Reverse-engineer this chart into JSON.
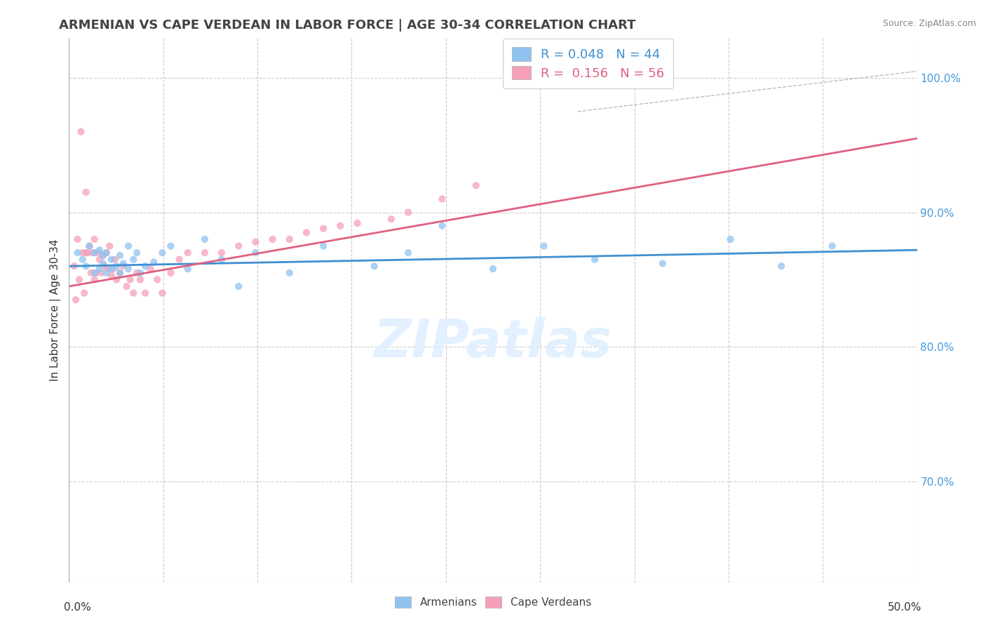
{
  "title": "ARMENIAN VS CAPE VERDEAN IN LABOR FORCE | AGE 30-34 CORRELATION CHART",
  "source": "Source: ZipAtlas.com",
  "ylabel": "In Labor Force | Age 30-34",
  "xmin": 0.0,
  "xmax": 0.5,
  "ymin": 0.625,
  "ymax": 1.03,
  "legend_blue": "R = 0.048   N = 44",
  "legend_pink": "R =  0.156   N = 56",
  "color_blue_fill": "#90C4F0",
  "color_pink_fill": "#F5A0B8",
  "color_blue_line": "#4090D0",
  "color_pink_line": "#E06080",
  "color_dashed": "#CCCCCC",
  "watermark": "ZIPatlas",
  "blue_r": 0.048,
  "pink_r": 0.156,
  "blue_scatter_x": [
    0.005,
    0.008,
    0.01,
    0.012,
    0.015,
    0.015,
    0.018,
    0.018,
    0.02,
    0.02,
    0.022,
    0.022,
    0.025,
    0.025,
    0.028,
    0.03,
    0.03,
    0.032,
    0.035,
    0.035,
    0.038,
    0.04,
    0.042,
    0.045,
    0.05,
    0.055,
    0.06,
    0.07,
    0.08,
    0.09,
    0.1,
    0.11,
    0.13,
    0.15,
    0.18,
    0.2,
    0.22,
    0.25,
    0.28,
    0.31,
    0.35,
    0.39,
    0.42,
    0.45
  ],
  "blue_scatter_y": [
    0.87,
    0.865,
    0.86,
    0.875,
    0.855,
    0.87,
    0.858,
    0.872,
    0.862,
    0.868,
    0.855,
    0.87,
    0.858,
    0.865,
    0.86,
    0.855,
    0.868,
    0.862,
    0.875,
    0.858,
    0.865,
    0.87,
    0.855,
    0.86,
    0.863,
    0.87,
    0.875,
    0.858,
    0.88,
    0.865,
    0.845,
    0.87,
    0.855,
    0.875,
    0.86,
    0.87,
    0.89,
    0.858,
    0.875,
    0.865,
    0.862,
    0.88,
    0.86,
    0.875
  ],
  "pink_scatter_x": [
    0.003,
    0.004,
    0.005,
    0.006,
    0.007,
    0.008,
    0.009,
    0.01,
    0.01,
    0.011,
    0.012,
    0.013,
    0.014,
    0.015,
    0.015,
    0.016,
    0.017,
    0.018,
    0.019,
    0.02,
    0.021,
    0.022,
    0.023,
    0.024,
    0.025,
    0.026,
    0.027,
    0.028,
    0.03,
    0.032,
    0.034,
    0.036,
    0.038,
    0.04,
    0.042,
    0.045,
    0.048,
    0.052,
    0.055,
    0.06,
    0.065,
    0.07,
    0.08,
    0.09,
    0.1,
    0.11,
    0.12,
    0.13,
    0.14,
    0.15,
    0.16,
    0.17,
    0.19,
    0.2,
    0.22,
    0.24
  ],
  "pink_scatter_y": [
    0.86,
    0.835,
    0.88,
    0.85,
    0.96,
    0.87,
    0.84,
    0.87,
    0.915,
    0.87,
    0.875,
    0.855,
    0.87,
    0.85,
    0.88,
    0.855,
    0.87,
    0.865,
    0.855,
    0.868,
    0.86,
    0.87,
    0.858,
    0.875,
    0.853,
    0.858,
    0.865,
    0.85,
    0.855,
    0.86,
    0.845,
    0.85,
    0.84,
    0.855,
    0.85,
    0.84,
    0.858,
    0.85,
    0.84,
    0.855,
    0.865,
    0.87,
    0.87,
    0.87,
    0.875,
    0.878,
    0.88,
    0.88,
    0.885,
    0.888,
    0.89,
    0.892,
    0.895,
    0.9,
    0.91,
    0.92
  ],
  "blue_line_x0": 0.0,
  "blue_line_y0": 0.86,
  "blue_line_x1": 0.5,
  "blue_line_y1": 0.872,
  "pink_line_x0": 0.0,
  "pink_line_y0": 0.845,
  "pink_line_x1": 0.5,
  "pink_line_y1": 0.955
}
